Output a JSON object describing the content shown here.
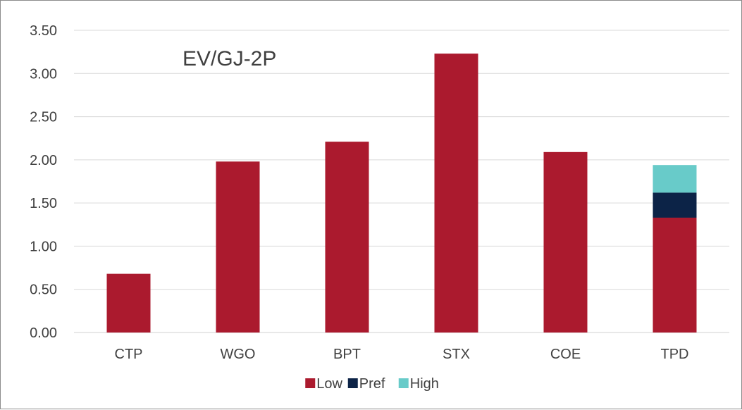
{
  "chart_data": {
    "type": "bar",
    "stacked": true,
    "title": "EV/GJ-2P",
    "xlabel": "",
    "ylabel": "",
    "ylim": [
      0,
      3.5
    ],
    "yticks": [
      "0.00",
      "0.50",
      "1.00",
      "1.50",
      "2.00",
      "2.50",
      "3.00",
      "3.50"
    ],
    "grid": true,
    "legend_position": "bottom",
    "categories": [
      "CTP",
      "WGO",
      "BPT",
      "STX",
      "COE",
      "TPD"
    ],
    "series": [
      {
        "name": "Low",
        "color": "#ab1a2e",
        "values": [
          0.68,
          1.98,
          2.21,
          3.23,
          2.09,
          1.33
        ]
      },
      {
        "name": "Pref",
        "color": "#0c2347",
        "values": [
          0,
          0,
          0,
          0,
          0,
          0.29
        ]
      },
      {
        "name": "High",
        "color": "#68cbc9",
        "values": [
          0,
          0,
          0,
          0,
          0,
          0.32
        ]
      }
    ]
  }
}
